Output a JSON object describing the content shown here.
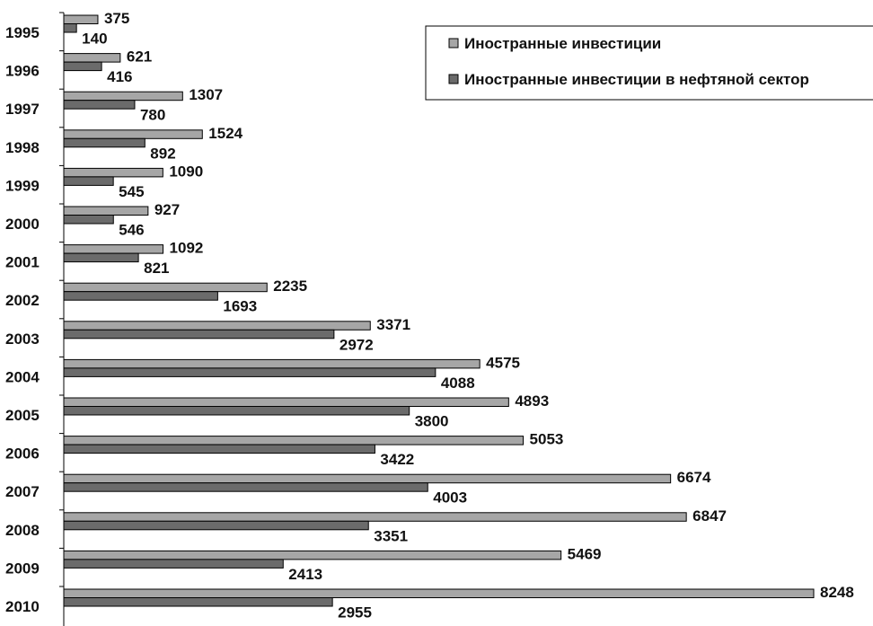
{
  "chart_data": {
    "type": "bar",
    "orientation": "horizontal",
    "categories": [
      "1995",
      "1996",
      "1997",
      "1998",
      "1999",
      "2000",
      "2001",
      "2002",
      "2003",
      "2004",
      "2005",
      "2006",
      "2007",
      "2008",
      "2009",
      "2010"
    ],
    "series": [
      {
        "name": "Иностранные инвестиции",
        "color": "#a6a6a6",
        "values": [
          375,
          621,
          1307,
          1524,
          1090,
          927,
          1092,
          2235,
          3371,
          4575,
          4893,
          5053,
          6674,
          6847,
          5469,
          8248
        ]
      },
      {
        "name": "Иностранные инвестиции в нефтяной сектор",
        "color": "#6b6b6b",
        "values": [
          140,
          416,
          780,
          892,
          545,
          546,
          821,
          1693,
          2972,
          4088,
          3800,
          3422,
          4003,
          3351,
          2413,
          2955
        ]
      }
    ],
    "data_labels": true,
    "legend_position": "top-right",
    "grid": false,
    "title": "",
    "xlabel": "",
    "ylabel": ""
  }
}
